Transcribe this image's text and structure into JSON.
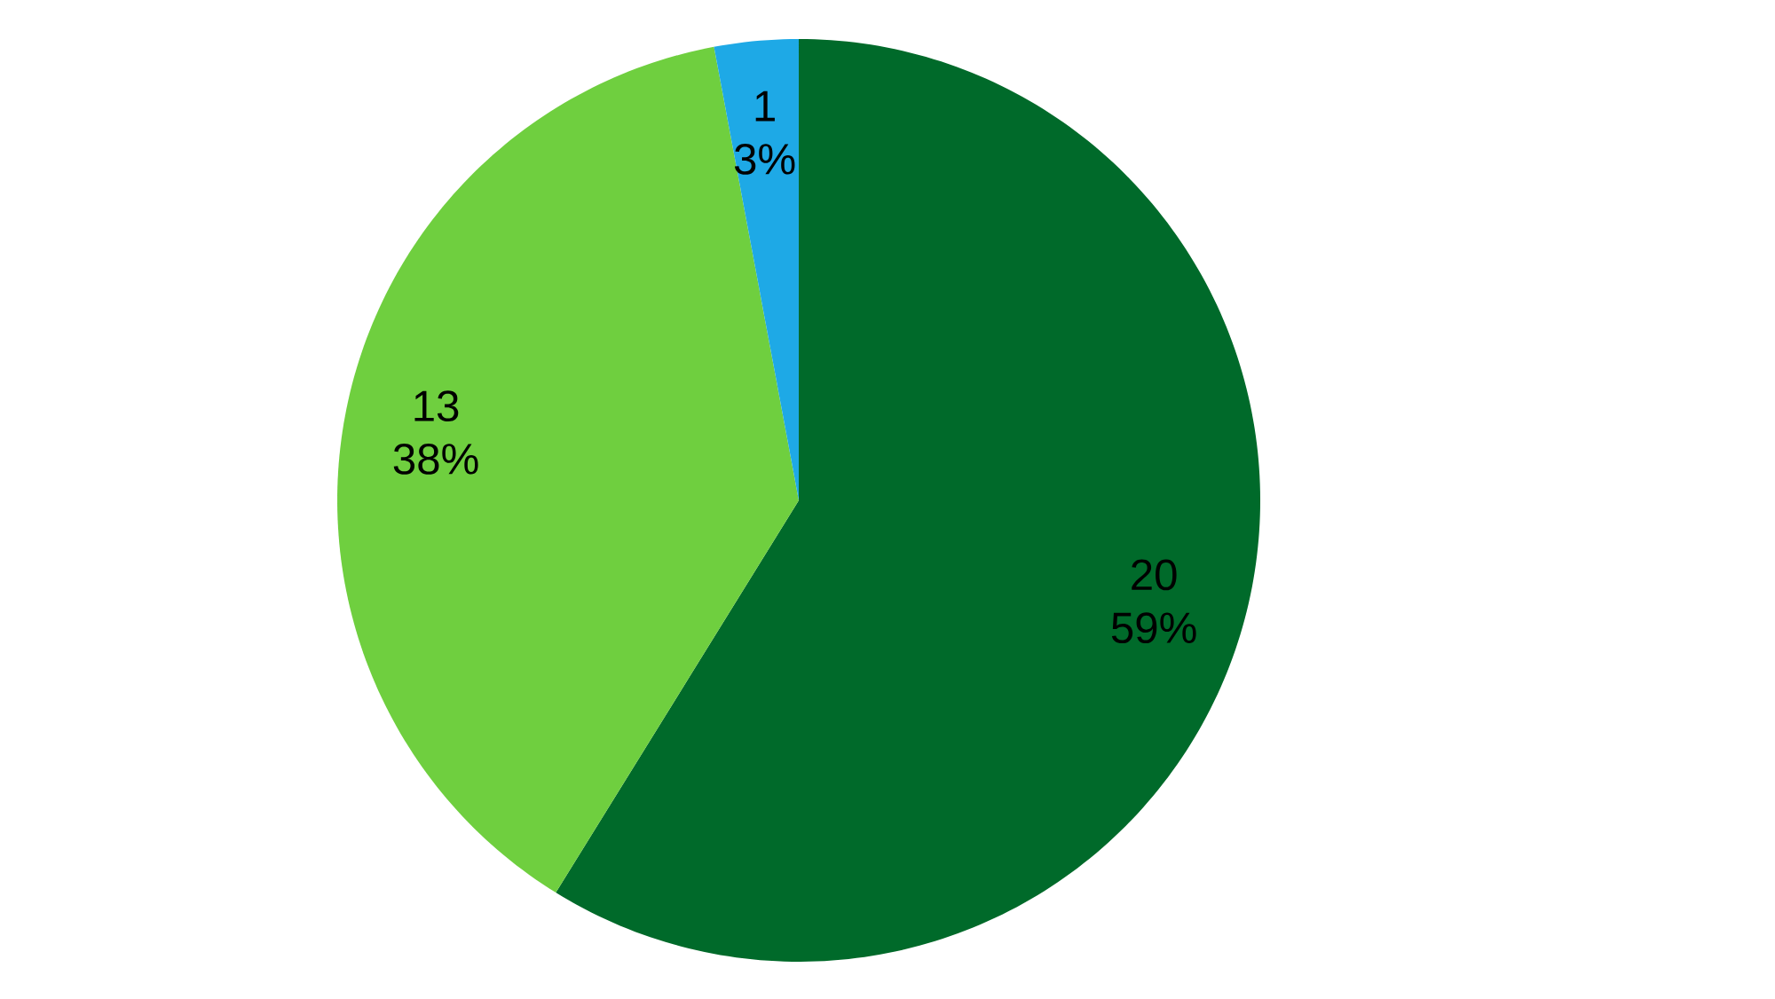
{
  "chart_data": {
    "type": "pie",
    "categories": [
      null,
      null,
      null
    ],
    "values": [
      20,
      13,
      1
    ],
    "colors": [
      "#006a2a",
      "#6fcf3f",
      "#1ea9e6"
    ],
    "value_labels": [
      "20 59%",
      "13 38%",
      "1 3%"
    ]
  }
}
